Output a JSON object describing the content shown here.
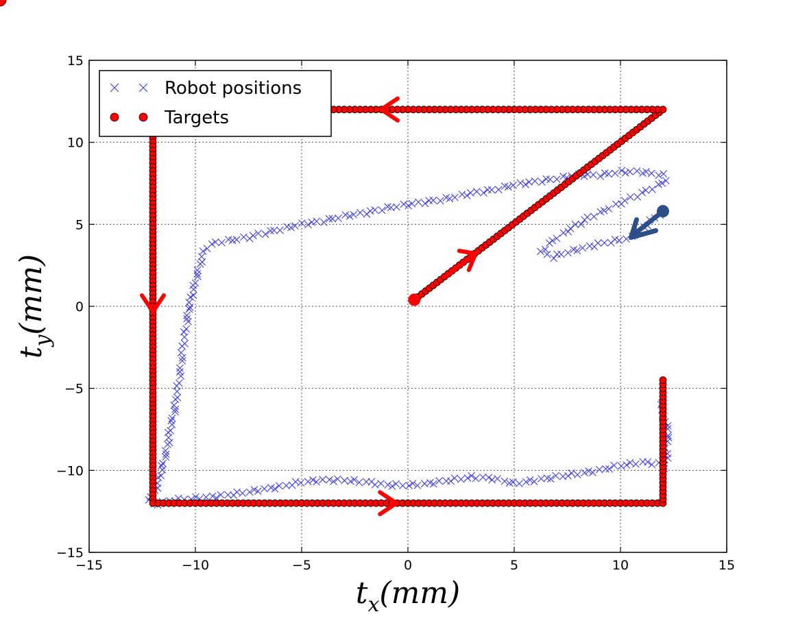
{
  "chart_data": {
    "type": "scatter",
    "xlabel": {
      "main": "t",
      "sub": "x",
      "unit": "(mm)"
    },
    "ylabel": {
      "main": "t",
      "sub": "y",
      "unit": "(mm)"
    },
    "xlim": [
      -15,
      15
    ],
    "ylim": [
      -15,
      15
    ],
    "xticks": [
      -15,
      -10,
      -5,
      0,
      5,
      10,
      15
    ],
    "yticks": [
      -15,
      -10,
      -5,
      0,
      5,
      10,
      15
    ],
    "xtick_labels": [
      "−15",
      "−10",
      "−5",
      "0",
      "5",
      "10",
      "15"
    ],
    "ytick_labels": [
      "−15",
      "−10",
      "−5",
      "0",
      "5",
      "10",
      "15"
    ],
    "grid": true,
    "legend": {
      "position": "top-left",
      "entries": [
        {
          "label": "Robot positions",
          "marker": "x",
          "color": "#3f3fdf"
        },
        {
          "label": "Targets",
          "marker": "o",
          "color": "#ff0000"
        }
      ]
    },
    "series": [
      {
        "name": "Targets",
        "marker": "o",
        "color": "#ff0000",
        "path": [
          [
            0.3,
            0.4
          ],
          [
            12.0,
            12.0
          ],
          [
            -12.0,
            12.0
          ],
          [
            -12.0,
            -12.0
          ],
          [
            12.0,
            -12.0
          ],
          [
            12.0,
            -4.5
          ]
        ]
      },
      {
        "name": "Robot positions",
        "marker": "x",
        "color": "#3f3fdf",
        "path": [
          [
            12.0,
            5.8
          ],
          [
            10.5,
            4.2
          ],
          [
            9.0,
            3.8
          ],
          [
            7.5,
            3.3
          ],
          [
            6.8,
            3.0
          ],
          [
            6.3,
            3.3
          ],
          [
            6.6,
            3.8
          ],
          [
            7.5,
            4.6
          ],
          [
            8.5,
            5.4
          ],
          [
            9.5,
            6.0
          ],
          [
            10.5,
            6.6
          ],
          [
            11.5,
            7.2
          ],
          [
            12.2,
            7.7
          ],
          [
            12.0,
            8.0
          ],
          [
            11.0,
            8.2
          ],
          [
            10.0,
            8.2
          ],
          [
            9.0,
            8.0
          ],
          [
            8.0,
            8.0
          ],
          [
            7.0,
            7.8
          ],
          [
            6.0,
            7.6
          ],
          [
            5.0,
            7.4
          ],
          [
            4.0,
            7.1
          ],
          [
            3.0,
            6.9
          ],
          [
            2.0,
            6.6
          ],
          [
            1.0,
            6.4
          ],
          [
            0.0,
            6.2
          ],
          [
            -1.0,
            6.0
          ],
          [
            -2.0,
            5.7
          ],
          [
            -3.0,
            5.5
          ],
          [
            -4.0,
            5.2
          ],
          [
            -5.0,
            5.0
          ],
          [
            -6.0,
            4.7
          ],
          [
            -7.0,
            4.4
          ],
          [
            -7.5,
            4.2
          ],
          [
            -8.0,
            4.1
          ],
          [
            -9.0,
            3.9
          ],
          [
            -9.5,
            3.6
          ],
          [
            -9.6,
            3.3
          ],
          [
            -9.8,
            2.5
          ],
          [
            -10.0,
            1.5
          ],
          [
            -10.2,
            0.5
          ],
          [
            -10.3,
            0.0
          ],
          [
            -10.4,
            -1.0
          ],
          [
            -10.6,
            -2.5
          ],
          [
            -10.7,
            -4.0
          ],
          [
            -10.9,
            -5.5
          ],
          [
            -11.0,
            -6.5
          ],
          [
            -11.2,
            -7.5
          ],
          [
            -11.3,
            -8.5
          ],
          [
            -11.5,
            -9.5
          ],
          [
            -11.7,
            -10.5
          ],
          [
            -11.9,
            -11.3
          ],
          [
            -12.2,
            -11.8
          ],
          [
            -12.0,
            -12.1
          ],
          [
            -11.0,
            -11.8
          ],
          [
            -10.0,
            -11.7
          ],
          [
            -9.0,
            -11.6
          ],
          [
            -8.0,
            -11.4
          ],
          [
            -7.0,
            -11.2
          ],
          [
            -6.0,
            -11.0
          ],
          [
            -5.0,
            -10.7
          ],
          [
            -4.0,
            -10.6
          ],
          [
            -3.0,
            -10.6
          ],
          [
            -2.0,
            -10.7
          ],
          [
            -1.0,
            -10.9
          ],
          [
            0.0,
            -10.9
          ],
          [
            1.0,
            -10.8
          ],
          [
            2.0,
            -10.6
          ],
          [
            3.0,
            -10.4
          ],
          [
            4.0,
            -10.5
          ],
          [
            5.0,
            -10.8
          ],
          [
            6.0,
            -10.6
          ],
          [
            7.0,
            -10.4
          ],
          [
            8.0,
            -10.2
          ],
          [
            9.0,
            -10.0
          ],
          [
            10.0,
            -9.7
          ],
          [
            11.0,
            -9.5
          ],
          [
            11.8,
            -9.6
          ],
          [
            12.0,
            -9.9
          ],
          [
            12.2,
            -9.2
          ],
          [
            12.1,
            -8.5
          ],
          [
            12.3,
            -7.8
          ],
          [
            12.1,
            -7.0
          ],
          [
            11.9,
            -6.3
          ],
          [
            12.0,
            -5.8
          ]
        ]
      }
    ],
    "annotations": [
      {
        "type": "arrow",
        "color": "#ff0000",
        "direction": "left",
        "at": [
          -1.0,
          12.0
        ]
      },
      {
        "type": "arrow",
        "color": "#ff0000",
        "direction": "down",
        "at": [
          -12.0,
          0.0
        ]
      },
      {
        "type": "arrow",
        "color": "#ff0000",
        "direction": "right",
        "at": [
          -0.8,
          -12.0
        ]
      },
      {
        "type": "arrow",
        "color": "#ff0000",
        "direction": "up-right",
        "at": [
          2.8,
          2.8
        ]
      },
      {
        "type": "start-arrow",
        "color": "#2b4f86",
        "from": [
          12.0,
          5.8
        ],
        "to": [
          10.5,
          4.2
        ]
      }
    ]
  }
}
